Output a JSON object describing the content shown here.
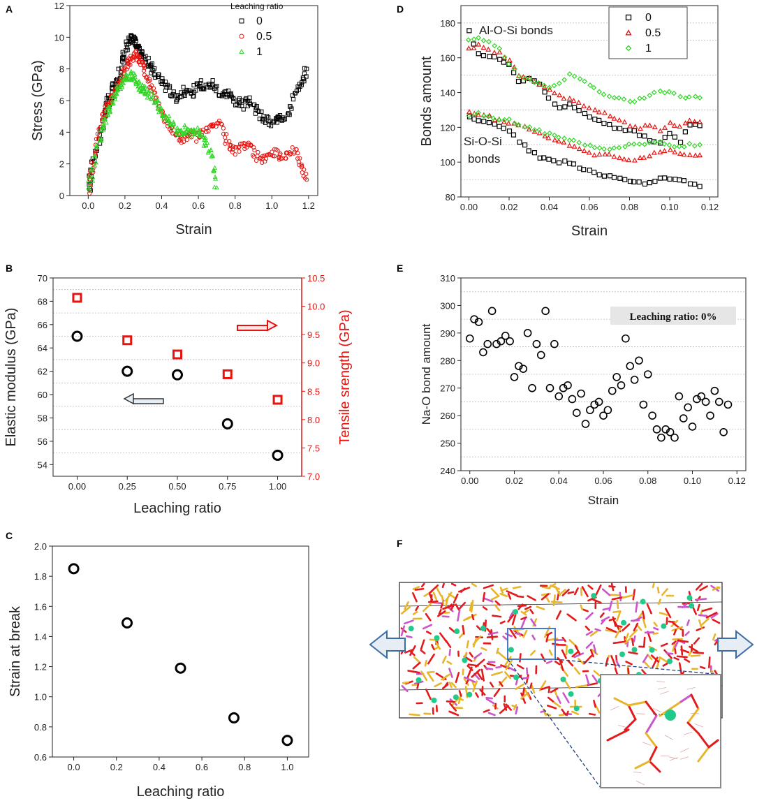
{
  "panel_labels": [
    "A",
    "B",
    "C",
    "D",
    "E",
    "F"
  ],
  "chart_data": [
    {
      "panel": "A",
      "type": "scatter",
      "xlabel": "Strain",
      "ylabel": "Stress (GPa)",
      "xlim": [
        -0.1,
        1.25
      ],
      "ylim": [
        0,
        12
      ],
      "xticks": [
        "0.0",
        "0.2",
        "0.4",
        "0.6",
        "0.8",
        "1.0",
        "1.2"
      ],
      "yticks": [
        "0",
        "2",
        "4",
        "6",
        "8",
        "10",
        "12"
      ],
      "legend_title": "Leaching ratio",
      "series": [
        {
          "name": "0",
          "color": "#000000",
          "marker": "square",
          "x": [
            0.0,
            0.02,
            0.05,
            0.08,
            0.1,
            0.12,
            0.15,
            0.18,
            0.2,
            0.22,
            0.24,
            0.26,
            0.28,
            0.3,
            0.33,
            0.36,
            0.4,
            0.44,
            0.48,
            0.52,
            0.56,
            0.6,
            0.64,
            0.68,
            0.72,
            0.76,
            0.8,
            0.84,
            0.88,
            0.92,
            0.96,
            1.0,
            1.04,
            1.08,
            1.12,
            1.16,
            1.19
          ],
          "y": [
            0.2,
            1.5,
            3.2,
            4.5,
            5.5,
            6.3,
            7.0,
            8.0,
            9.0,
            9.7,
            10.0,
            9.6,
            9.2,
            8.8,
            8.3,
            7.8,
            7.3,
            6.7,
            6.2,
            6.6,
            6.3,
            7.2,
            6.8,
            7.1,
            6.4,
            6.5,
            6.0,
            5.7,
            6.0,
            5.3,
            4.8,
            4.5,
            5.2,
            4.8,
            6.2,
            7.0,
            8.0
          ]
        },
        {
          "name": "0.5",
          "color": "#e8130f",
          "marker": "circle",
          "x": [
            0.0,
            0.02,
            0.05,
            0.08,
            0.1,
            0.12,
            0.15,
            0.18,
            0.2,
            0.22,
            0.24,
            0.26,
            0.28,
            0.3,
            0.33,
            0.36,
            0.4,
            0.44,
            0.48,
            0.52,
            0.56,
            0.6,
            0.64,
            0.68,
            0.72,
            0.76,
            0.8,
            0.84,
            0.88,
            0.92,
            0.96,
            1.0,
            1.04,
            1.08,
            1.12,
            1.16,
            1.19
          ],
          "y": [
            0.2,
            1.6,
            3.4,
            4.9,
            5.6,
            6.0,
            6.6,
            7.3,
            7.8,
            8.4,
            8.8,
            8.9,
            8.6,
            8.0,
            7.3,
            6.4,
            5.4,
            4.4,
            3.8,
            3.5,
            3.9,
            3.6,
            4.2,
            4.4,
            4.6,
            3.2,
            2.8,
            3.3,
            3.0,
            2.5,
            2.2,
            2.8,
            2.5,
            2.6,
            2.9,
            2.0,
            1.0
          ]
        },
        {
          "name": "1",
          "color": "#2fd624",
          "marker": "triangle",
          "x": [
            0.0,
            0.02,
            0.05,
            0.08,
            0.1,
            0.12,
            0.14,
            0.16,
            0.18,
            0.2,
            0.22,
            0.24,
            0.26,
            0.28,
            0.3,
            0.32,
            0.35,
            0.38,
            0.41,
            0.44,
            0.47,
            0.5,
            0.53,
            0.56,
            0.59,
            0.62,
            0.65,
            0.68,
            0.7
          ],
          "y": [
            0.2,
            1.5,
            3.0,
            4.2,
            5.1,
            5.7,
            6.2,
            6.8,
            7.2,
            7.5,
            7.6,
            7.5,
            7.1,
            6.9,
            6.7,
            6.5,
            6.2,
            5.7,
            5.2,
            4.6,
            4.3,
            3.8,
            4.2,
            3.9,
            4.1,
            3.6,
            3.2,
            2.2,
            0.5
          ]
        }
      ]
    },
    {
      "panel": "B",
      "type": "scatter",
      "xlabel": "Leaching ratio",
      "ylabel": "Elastic modulus (GPa)",
      "ylabel_right": "Tensile srength (GPa)",
      "xticks": [
        "0.00",
        "0.25",
        "0.50",
        "0.75",
        "1.00"
      ],
      "yticks_left": [
        "54",
        "56",
        "58",
        "60",
        "62",
        "64",
        "66",
        "68",
        "70"
      ],
      "yticks_right": [
        "7.0",
        "7.5",
        "8.0",
        "8.5",
        "9.0",
        "9.5",
        "10.0",
        "10.5"
      ],
      "ylim_left": [
        53,
        70
      ],
      "ylim_right": [
        7.0,
        10.5
      ],
      "xlim": [
        -0.12,
        1.12
      ],
      "series": [
        {
          "name": "Elastic modulus",
          "axis": "left",
          "color": "#000000",
          "marker": "circle",
          "x": [
            0,
            0.25,
            0.5,
            0.75,
            1.0
          ],
          "y": [
            65.0,
            62.0,
            61.7,
            57.5,
            54.8
          ]
        },
        {
          "name": "Tensile strength",
          "axis": "right",
          "color": "#e8130f",
          "marker": "square",
          "x": [
            0,
            0.25,
            0.5,
            0.75,
            1.0
          ],
          "y": [
            10.15,
            9.4,
            9.15,
            8.8,
            8.35
          ]
        }
      ]
    },
    {
      "panel": "C",
      "type": "scatter",
      "xlabel": "Leaching ratio",
      "ylabel": "Strain at break",
      "xticks": [
        "0.0",
        "0.2",
        "0.4",
        "0.6",
        "0.8",
        "1.0"
      ],
      "yticks": [
        "0.6",
        "0.8",
        "1.0",
        "1.2",
        "1.4",
        "1.6",
        "1.8",
        "2.0"
      ],
      "xlim": [
        -0.1,
        1.1
      ],
      "ylim": [
        0.6,
        2.0
      ],
      "series": [
        {
          "name": "Strain at break",
          "color": "#000000",
          "marker": "circle",
          "x": [
            0,
            0.25,
            0.5,
            0.75,
            1.0
          ],
          "y": [
            1.85,
            1.49,
            1.19,
            0.86,
            0.71
          ]
        }
      ]
    },
    {
      "panel": "D",
      "type": "scatter",
      "xlabel": "Strain",
      "ylabel": "Bonds amount",
      "xticks": [
        "0.00",
        "0.02",
        "0.04",
        "0.06",
        "0.08",
        "0.10",
        "0.12"
      ],
      "yticks": [
        "80",
        "100",
        "120",
        "140",
        "160",
        "180"
      ],
      "xlim": [
        -0.004,
        0.124
      ],
      "ylim": [
        80,
        190
      ],
      "annotations": [
        "Al-O-Si bonds",
        "Si-O-Si",
        "bonds"
      ],
      "series": [
        {
          "name": "0",
          "color": "#000000",
          "marker": "square",
          "group": "Al-O-Si",
          "x": [
            0.0,
            0.005,
            0.01,
            0.015,
            0.02,
            0.025,
            0.03,
            0.035,
            0.04,
            0.045,
            0.05,
            0.055,
            0.06,
            0.065,
            0.07,
            0.075,
            0.08,
            0.085,
            0.09,
            0.095,
            0.1,
            0.105,
            0.11,
            0.115
          ],
          "y": [
            175,
            162,
            161,
            159,
            156,
            146,
            148,
            145,
            137,
            131,
            133,
            129,
            126,
            124,
            121,
            119,
            119,
            116,
            113,
            111,
            117,
            112,
            122,
            121
          ]
        },
        {
          "name": "0.5",
          "color": "#e8130f",
          "marker": "triangle",
          "group": "Al-O-Si",
          "x": [
            0.0,
            0.005,
            0.01,
            0.015,
            0.02,
            0.025,
            0.03,
            0.035,
            0.04,
            0.045,
            0.05,
            0.055,
            0.06,
            0.065,
            0.07,
            0.075,
            0.08,
            0.085,
            0.09,
            0.095,
            0.1,
            0.105,
            0.11,
            0.115
          ],
          "y": [
            165,
            167,
            164,
            163,
            158,
            150,
            148,
            145,
            141,
            138,
            136,
            134,
            131,
            129,
            127,
            124,
            121,
            120,
            121,
            118,
            122,
            121,
            124,
            123
          ]
        },
        {
          "name": "1",
          "color": "#2fd624",
          "marker": "diamond",
          "group": "Al-O-Si",
          "x": [
            0.0,
            0.005,
            0.01,
            0.015,
            0.02,
            0.025,
            0.03,
            0.035,
            0.04,
            0.045,
            0.05,
            0.055,
            0.06,
            0.065,
            0.07,
            0.075,
            0.08,
            0.085,
            0.09,
            0.095,
            0.1,
            0.105,
            0.11,
            0.115
          ],
          "y": [
            170,
            172,
            169,
            165,
            157,
            149,
            147,
            146,
            143,
            146,
            150,
            148,
            144,
            141,
            138,
            137,
            135,
            136,
            139,
            141,
            140,
            138,
            137,
            137
          ]
        },
        {
          "name": "0",
          "color": "#000000",
          "marker": "square",
          "group": "Si-O-Si",
          "x": [
            0.0,
            0.005,
            0.01,
            0.015,
            0.02,
            0.025,
            0.03,
            0.035,
            0.04,
            0.045,
            0.05,
            0.055,
            0.06,
            0.065,
            0.07,
            0.075,
            0.08,
            0.085,
            0.09,
            0.095,
            0.1,
            0.105,
            0.11,
            0.115
          ],
          "y": [
            126,
            124,
            123,
            120,
            118,
            112,
            107,
            103,
            101,
            100,
            100,
            97,
            95,
            92,
            92,
            91,
            89,
            88,
            88,
            91,
            90,
            90,
            88,
            86
          ]
        },
        {
          "name": "0.5",
          "color": "#e8130f",
          "marker": "triangle",
          "group": "Si-O-Si",
          "x": [
            0.0,
            0.005,
            0.01,
            0.015,
            0.02,
            0.025,
            0.03,
            0.035,
            0.04,
            0.045,
            0.05,
            0.055,
            0.06,
            0.065,
            0.07,
            0.075,
            0.08,
            0.085,
            0.09,
            0.095,
            0.1,
            0.105,
            0.11,
            0.115
          ],
          "y": [
            129,
            127,
            126,
            124,
            122,
            121,
            119,
            116,
            114,
            112,
            110,
            107,
            105,
            104,
            104,
            103,
            101,
            102,
            104,
            106,
            107,
            105,
            104,
            104
          ]
        },
        {
          "name": "1",
          "color": "#2fd624",
          "marker": "diamond",
          "group": "Si-O-Si",
          "x": [
            0.0,
            0.005,
            0.01,
            0.015,
            0.02,
            0.025,
            0.03,
            0.035,
            0.04,
            0.045,
            0.05,
            0.055,
            0.06,
            0.065,
            0.07,
            0.075,
            0.08,
            0.085,
            0.09,
            0.095,
            0.1,
            0.105,
            0.11,
            0.115
          ],
          "y": [
            127,
            128,
            126,
            125,
            124,
            122,
            120,
            118,
            116,
            114,
            113,
            111,
            109,
            108,
            108,
            109,
            110,
            110,
            111,
            112,
            110,
            109,
            110,
            110
          ]
        }
      ]
    },
    {
      "panel": "E",
      "type": "scatter",
      "xlabel": "Strain",
      "ylabel": "Na-O bond amount",
      "xticks": [
        "0.00",
        "0.02",
        "0.04",
        "0.06",
        "0.08",
        "0.10",
        "0.12"
      ],
      "yticks": [
        "240",
        "250",
        "260",
        "270",
        "280",
        "290",
        "300",
        "310"
      ],
      "xlim": [
        -0.004,
        0.124
      ],
      "ylim": [
        240,
        310
      ],
      "annotation": "Leaching ratio: 0%",
      "series": [
        {
          "name": "Na-O",
          "color": "#000000",
          "marker": "circle",
          "x": [
            0.0,
            0.002,
            0.004,
            0.006,
            0.008,
            0.01,
            0.012,
            0.014,
            0.016,
            0.018,
            0.02,
            0.022,
            0.024,
            0.026,
            0.028,
            0.03,
            0.032,
            0.034,
            0.036,
            0.038,
            0.04,
            0.042,
            0.044,
            0.046,
            0.048,
            0.05,
            0.052,
            0.054,
            0.056,
            0.058,
            0.06,
            0.062,
            0.064,
            0.066,
            0.068,
            0.07,
            0.072,
            0.074,
            0.076,
            0.078,
            0.08,
            0.082,
            0.084,
            0.086,
            0.088,
            0.09,
            0.092,
            0.094,
            0.096,
            0.098,
            0.1,
            0.102,
            0.104,
            0.106,
            0.108,
            0.11,
            0.112,
            0.114,
            0.116
          ],
          "y": [
            288,
            295,
            294,
            283,
            286,
            298,
            286,
            287,
            289,
            287,
            274,
            278,
            277,
            290,
            270,
            286,
            282,
            298,
            270,
            286,
            267,
            270,
            271,
            266,
            261,
            268,
            257,
            262,
            264,
            265,
            260,
            262,
            269,
            274,
            271,
            288,
            278,
            273,
            280,
            264,
            275,
            260,
            255,
            252,
            255,
            254,
            252,
            267,
            259,
            263,
            256,
            266,
            267,
            265,
            260,
            269,
            265,
            254,
            264
          ]
        }
      ]
    }
  ],
  "panel_f": {
    "description_free": true,
    "arrow_color": "#3a6ea5"
  }
}
